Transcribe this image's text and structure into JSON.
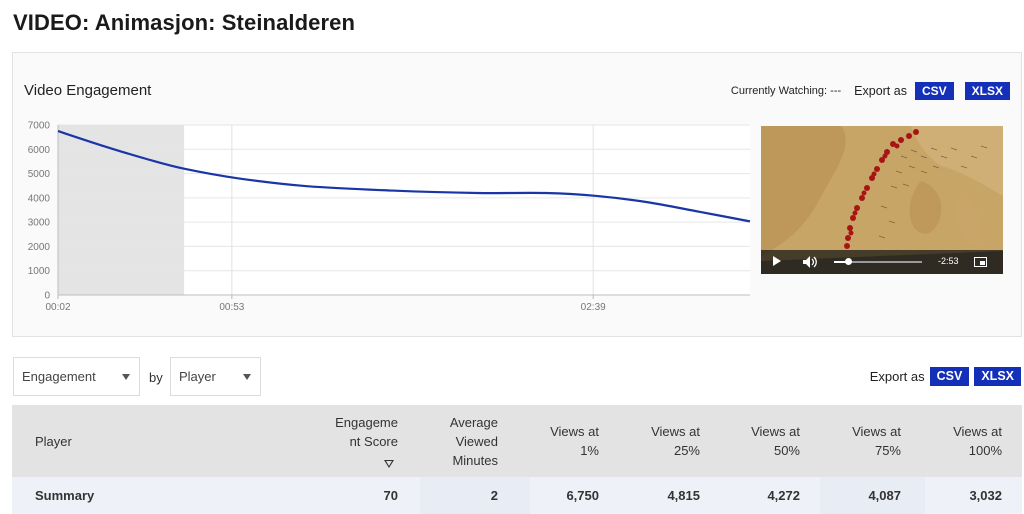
{
  "page": {
    "title": "VIDEO: Animasjon: Steinalderen"
  },
  "engagement_panel": {
    "title": "Video Engagement",
    "currently_watching": "Currently Watching: ---",
    "export_label": "Export as",
    "csv_label": "CSV",
    "xlsx_label": "XLSX"
  },
  "chart_data": {
    "type": "line",
    "title": "Video Engagement",
    "xlabel": "",
    "ylabel": "",
    "ylim": [
      0,
      7000
    ],
    "yticks": [
      "0",
      "1000",
      "2000",
      "3000",
      "4000",
      "5000",
      "6000",
      "7000"
    ],
    "xtick_labels": [
      "00:02",
      "00:53",
      "02:39"
    ],
    "xlim_seconds": [
      2,
      205
    ],
    "xtick_seconds": [
      2,
      53,
      159
    ],
    "highlight_range_seconds": [
      2,
      39
    ],
    "series": [
      {
        "name": "Engagement",
        "color": "#1a35a6",
        "x_seconds": [
          2,
          15,
          28,
          39,
          55,
          75,
          100,
          125,
          145,
          160,
          175,
          190,
          205
        ],
        "values": [
          6750,
          6150,
          5600,
          5200,
          4800,
          4480,
          4300,
          4200,
          4200,
          4080,
          3820,
          3430,
          3032
        ]
      }
    ]
  },
  "video_player": {
    "remaining_time": "-2:53",
    "play_icon": "play-icon",
    "volume_icon": "volume-icon",
    "pip_icon": "picture-in-picture-icon"
  },
  "filters": {
    "metric_value": "Engagement",
    "by_label": "by",
    "group_value": "Player",
    "export_label": "Export as",
    "csv_label": "CSV",
    "xlsx_label": "XLSX"
  },
  "table": {
    "headers": {
      "player": "Player",
      "engagement_score_1": "Engageme",
      "engagement_score_2": "nt Score",
      "avg_minutes_1": "Average",
      "avg_minutes_2": "Viewed",
      "avg_minutes_3": "Minutes",
      "views1_1": "Views at",
      "views1_2": "1%",
      "views25_1": "Views at",
      "views25_2": "25%",
      "views50_1": "Views at",
      "views50_2": "50%",
      "views75_1": "Views at",
      "views75_2": "75%",
      "views100_1": "Views at",
      "views100_2": "100%"
    },
    "summary_row": {
      "player": "Summary",
      "engagement_score": "70",
      "avg_viewed_minutes": "2",
      "views_1": "6,750",
      "views_25": "4,815",
      "views_50": "4,272",
      "views_75": "4,087",
      "views_100": "3,032"
    }
  }
}
